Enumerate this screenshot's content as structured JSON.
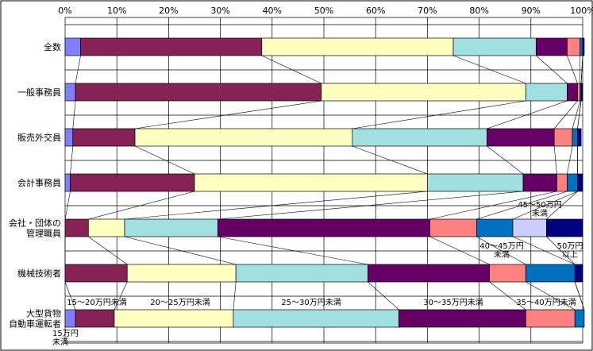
{
  "chart_data": {
    "type": "bar",
    "orientation": "horizontal",
    "stacked": true,
    "percent": true,
    "x_ticks": [
      "0%",
      "10%",
      "20%",
      "30%",
      "40%",
      "50%",
      "60%",
      "70%",
      "80%",
      "90%",
      "100%"
    ],
    "xlim": [
      0,
      100
    ],
    "grid": true,
    "categories": [
      "全数",
      "一般事務員",
      "販売外交員",
      "会計事務員",
      "会社・団体の\n管理職員",
      "機械技術者",
      "大型貨物\n自動車運転者"
    ],
    "series": [
      {
        "name": "15万円\n未満",
        "color": "#8080ff",
        "values": [
          3,
          2,
          1.5,
          1,
          0,
          0,
          2
        ]
      },
      {
        "name": "15～20万円未満",
        "color": "#862255",
        "values": [
          35,
          47.5,
          12,
          24,
          4.5,
          12,
          7.5
        ]
      },
      {
        "name": "20～25万円未満",
        "color": "#ffffc0",
        "values": [
          37,
          39.5,
          42,
          45,
          7,
          21,
          23
        ]
      },
      {
        "name": "25～30万円未満",
        "color": "#a0e0e0",
        "values": [
          16,
          8,
          26,
          18.5,
          18,
          25.5,
          32
        ]
      },
      {
        "name": "30～35万円未満",
        "color": "#660066",
        "values": [
          6,
          2,
          13,
          6.5,
          41,
          23.5,
          24.5
        ]
      },
      {
        "name": "35～40万円未満",
        "color": "#ff8080",
        "values": [
          2.5,
          0.5,
          3.5,
          2,
          9,
          7,
          9.5
        ]
      },
      {
        "name": "40～45万円\n未満",
        "color": "#0070c0",
        "values": [
          0.5,
          0.2,
          1,
          2,
          7,
          9.5,
          1.8
        ]
      },
      {
        "name": "45～50万円\n未満",
        "color": "#ccccff",
        "values": [
          0,
          0,
          0,
          0,
          6.5,
          0,
          0
        ]
      },
      {
        "name": "50万円\n以上",
        "color": "#000080",
        "values": [
          0.3,
          0.3,
          0.7,
          1,
          7,
          1.5,
          0
        ]
      }
    ]
  }
}
